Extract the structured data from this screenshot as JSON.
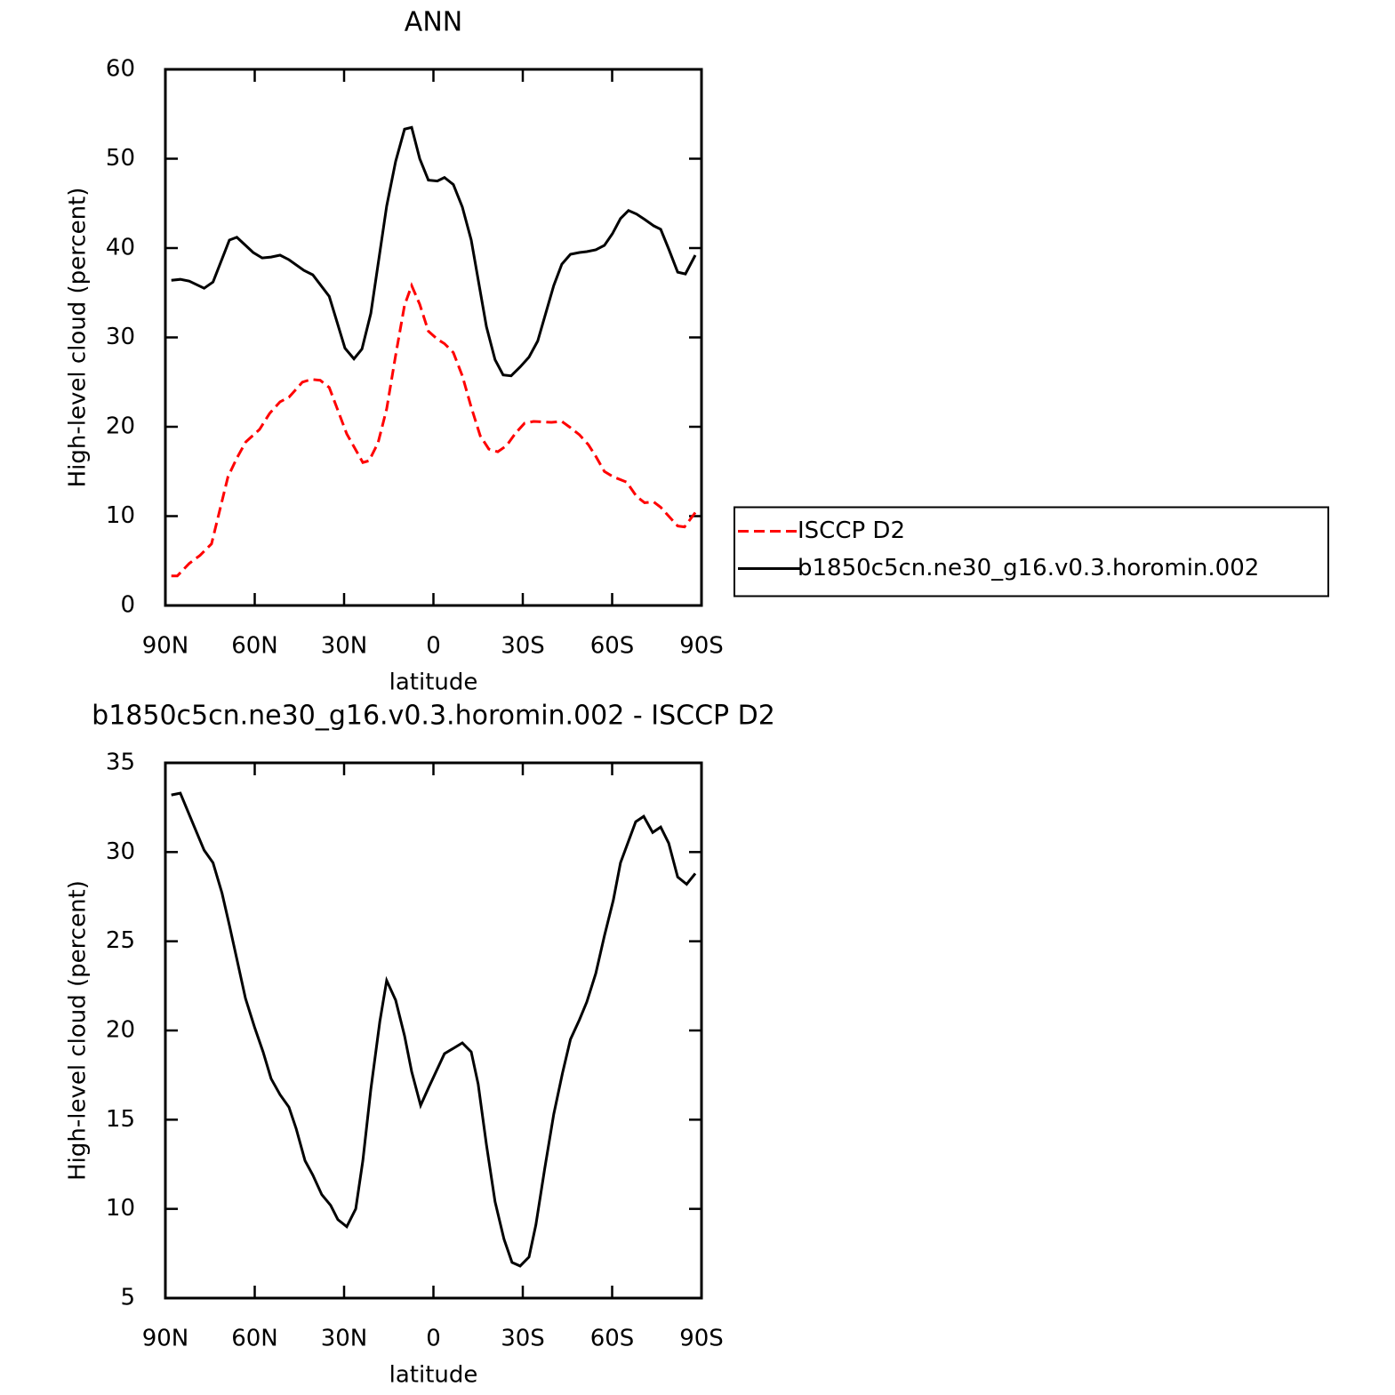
{
  "chart_data": [
    {
      "type": "line",
      "title": "ANN",
      "xlabel": "latitude",
      "ylabel": "High-level cloud (percent)",
      "xlim": [
        90,
        -90
      ],
      "ylim": [
        0,
        60
      ],
      "xticks": [
        {
          "value": 90,
          "label": "90N"
        },
        {
          "value": 60,
          "label": "60N"
        },
        {
          "value": 30,
          "label": "30N"
        },
        0,
        {
          "value": -30,
          "label": "30S"
        },
        {
          "value": -60,
          "label": "60S"
        },
        {
          "value": -90,
          "label": "90S"
        }
      ],
      "yticks": [
        0,
        10,
        20,
        30,
        40,
        50,
        60
      ],
      "legend": "right",
      "series": [
        {
          "name": "ISCCP D2",
          "color": "#ff0000",
          "dash": true,
          "x": [
            88,
            86,
            82,
            78.4,
            74.5,
            69,
            66,
            63,
            58.4,
            55,
            51.5,
            48.5,
            44,
            41,
            38,
            35,
            29.1,
            23.7,
            21.6,
            18.6,
            15.7,
            12.7,
            9.7,
            7.3,
            4.6,
            1.7,
            -1.3,
            -3.7,
            -6.7,
            -9.7,
            -12.7,
            -15.7,
            -18.6,
            -21.6,
            -24.6,
            -27.6,
            -30.6,
            -33.6,
            -39.6,
            -43.1,
            -46,
            -49,
            -52,
            -54.5,
            -57.4,
            -60.4,
            -64.9,
            -68.2,
            -70.9,
            -73.9,
            -76.3,
            -79,
            -82,
            -84.3,
            -87.9
          ],
          "values": [
            3.3,
            3.3,
            4.7,
            5.6,
            6.9,
            14.4,
            16.5,
            18.3,
            19.7,
            21.5,
            22.8,
            23.3,
            25.0,
            25.3,
            25.2,
            24.4,
            19.2,
            16.0,
            16.2,
            18.2,
            22.0,
            28.0,
            33.6,
            35.8,
            33.7,
            30.7,
            29.8,
            29.3,
            28.3,
            25.7,
            22.2,
            19.0,
            17.5,
            17.2,
            17.9,
            19.3,
            20.4,
            20.6,
            20.5,
            20.6,
            19.9,
            19.1,
            18.0,
            16.7,
            15.0,
            14.4,
            13.8,
            12.2,
            11.5,
            11.6,
            11.0,
            10.0,
            8.9,
            8.8,
            10.4
          ]
        },
        {
          "name": "b1850c5cn.ne30_g16.v0.3.horomin.002",
          "color": "#000000",
          "dash": false,
          "x": [
            88,
            85,
            82,
            77,
            74,
            68.5,
            66,
            60.5,
            57.5,
            54.5,
            51.5,
            48.5,
            43.5,
            40.5,
            35,
            29.7,
            26.7,
            24,
            21,
            15.7,
            12.7,
            9.7,
            7.3,
            4.6,
            1.7,
            -1.3,
            -3.7,
            -6.7,
            -9.7,
            -12.7,
            -17.8,
            -20.7,
            -23.4,
            -26.1,
            -29.1,
            -32.1,
            -35,
            -40.4,
            -43.1,
            -46,
            -49,
            -51.5,
            -54.5,
            -57.4,
            -60.1,
            -62.8,
            -65.5,
            -68.2,
            -70.9,
            -73.9,
            -76.3,
            -79,
            -82,
            -84.6,
            -87.9
          ],
          "values": [
            36.4,
            36.5,
            36.3,
            35.5,
            36.2,
            40.9,
            41.2,
            39.5,
            38.9,
            39.0,
            39.2,
            38.7,
            37.5,
            37.0,
            34.6,
            28.8,
            27.6,
            28.7,
            32.7,
            44.7,
            49.7,
            53.3,
            53.5,
            50.0,
            47.6,
            47.5,
            47.9,
            47.1,
            44.6,
            40.9,
            31.2,
            27.5,
            25.8,
            25.7,
            26.7,
            27.8,
            29.6,
            35.8,
            38.2,
            39.3,
            39.5,
            39.6,
            39.8,
            40.3,
            41.6,
            43.3,
            44.2,
            43.8,
            43.2,
            42.5,
            42.1,
            39.9,
            37.3,
            37.1,
            39.2
          ]
        }
      ]
    },
    {
      "type": "line",
      "title": "b1850c5cn.ne30_g16.v0.3.horomin.002 - ISCCP D2",
      "xlabel": "latitude",
      "ylabel": "High-level cloud (percent)",
      "xlim": [
        90,
        -90
      ],
      "ylim": [
        5,
        35
      ],
      "xticks": [
        {
          "value": 90,
          "label": "90N"
        },
        {
          "value": 60,
          "label": "60N"
        },
        {
          "value": 30,
          "label": "30N"
        },
        0,
        {
          "value": -30,
          "label": "30S"
        },
        {
          "value": -60,
          "label": "60S"
        },
        {
          "value": -90,
          "label": "90S"
        }
      ],
      "yticks": [
        5,
        10,
        15,
        20,
        25,
        30,
        35
      ],
      "series": [
        {
          "color": "#000000",
          "dash": false,
          "x": [
            88,
            85,
            80,
            77,
            74,
            71,
            68.5,
            66,
            63.1,
            60.1,
            57.2,
            54.5,
            51.5,
            48.5,
            46.1,
            43.1,
            40.5,
            37.5,
            34.5,
            32.1,
            29.1,
            26.1,
            23.7,
            21,
            18,
            15.7,
            12.7,
            9.7,
            7.3,
            4.3,
            1.6,
            -3.7,
            -6.7,
            -9.7,
            -12.7,
            -15,
            -17.8,
            -20.7,
            -23.7,
            -26.4,
            -29.1,
            -32.1,
            -34.4,
            -37.4,
            -40.4,
            -43.3,
            -46,
            -49,
            -51.5,
            -54.5,
            -57.4,
            -60.4,
            -62.8,
            -67.9,
            -70.6,
            -73.6,
            -76.3,
            -79,
            -82,
            -85,
            -87.9
          ],
          "values": [
            33.2,
            33.3,
            31.3,
            30.1,
            29.4,
            27.7,
            25.9,
            24.0,
            21.8,
            20.2,
            18.8,
            17.3,
            16.4,
            15.7,
            14.5,
            12.7,
            11.9,
            10.8,
            10.2,
            9.4,
            9.0,
            10.0,
            12.7,
            16.7,
            20.5,
            22.8,
            21.7,
            19.7,
            17.7,
            15.8,
            16.8,
            18.7,
            19.0,
            19.3,
            18.8,
            17.0,
            13.6,
            10.4,
            8.3,
            7.0,
            6.8,
            7.3,
            9.1,
            12.3,
            15.3,
            17.6,
            19.5,
            20.6,
            21.6,
            23.2,
            25.3,
            27.3,
            29.4,
            31.7,
            32.0,
            31.1,
            31.4,
            30.5,
            28.6,
            28.2,
            28.8
          ]
        }
      ]
    }
  ]
}
